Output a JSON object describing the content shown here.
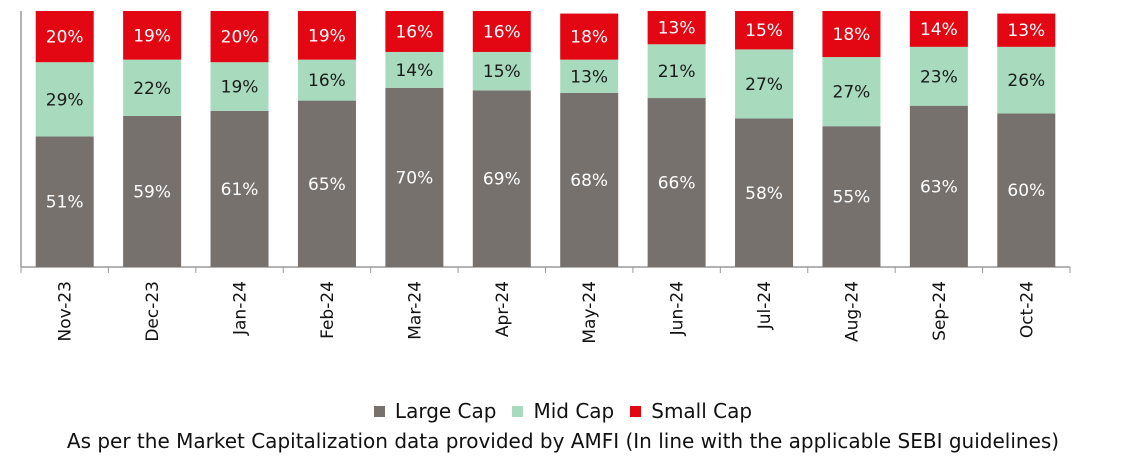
{
  "chart_data": {
    "type": "bar",
    "stacked": true,
    "percent_stacked": true,
    "categories": [
      "Nov-23",
      "Dec-23",
      "Jan-24",
      "Feb-24",
      "Mar-24",
      "Apr-24",
      "May-24",
      "Jun-24",
      "Jul-24",
      "Aug-24",
      "Sep-24",
      "Oct-24"
    ],
    "series": [
      {
        "name": "Large Cap",
        "color": "#77716d",
        "values": [
          51,
          59,
          61,
          65,
          70,
          69,
          68,
          66,
          58,
          55,
          63,
          60
        ]
      },
      {
        "name": "Mid Cap",
        "color": "#a8dbbd",
        "values": [
          29,
          22,
          19,
          16,
          14,
          15,
          13,
          21,
          27,
          27,
          23,
          26
        ]
      },
      {
        "name": "Small Cap",
        "color": "#e30613",
        "values": [
          20,
          19,
          20,
          19,
          16,
          16,
          18,
          13,
          15,
          18,
          14,
          13
        ]
      }
    ],
    "value_suffix": "%",
    "legend_position": "bottom",
    "grid": false,
    "ylim": [
      0,
      100
    ]
  },
  "footnote": "As per the Market Capitalization data provided by AMFI (In line with the applicable SEBI guidelines)"
}
